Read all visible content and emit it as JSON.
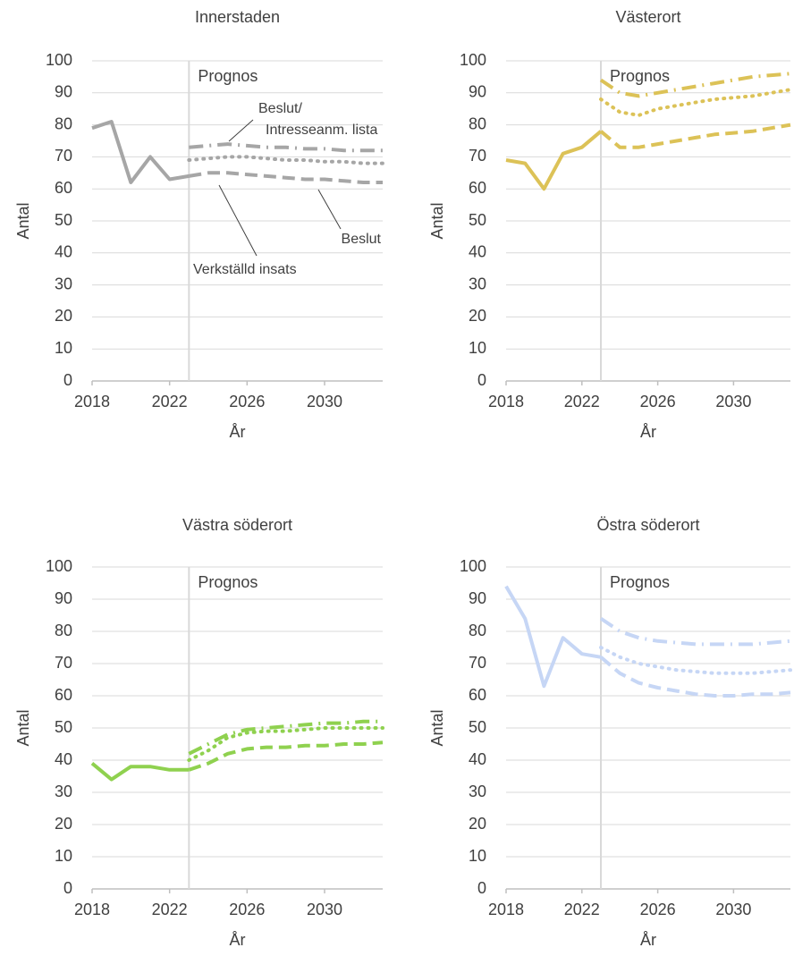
{
  "chart_data": [
    {
      "type": "line",
      "title": "Innerstaden",
      "ylabel": "Antal",
      "xlabel": "År",
      "x": [
        2018,
        2019,
        2020,
        2021,
        2022,
        2023,
        2024,
        2025,
        2026,
        2027,
        2028,
        2029,
        2030,
        2031,
        2032,
        2033
      ],
      "xlim": [
        2018,
        2033
      ],
      "xticks": [
        2018,
        2022,
        2026,
        2030
      ],
      "ylim": [
        0,
        100
      ],
      "yticks": [
        0,
        10,
        20,
        30,
        40,
        50,
        60,
        70,
        80,
        90,
        100
      ],
      "grid": true,
      "vline": {
        "x": 2023,
        "label": "Prognos"
      },
      "annotations": [
        [
          "Beslut/",
          "Intresseanm. lista"
        ],
        [
          "Beslut"
        ],
        [
          "Verkställd insats"
        ]
      ],
      "series": [
        {
          "color": "#a6a6a6",
          "dash": "solid",
          "values": [
            79,
            81,
            62,
            70,
            63,
            64,
            null,
            null,
            null,
            null,
            null,
            null,
            null,
            null,
            null,
            null
          ]
        },
        {
          "color": "#a6a6a6",
          "dash": "dashed",
          "values": [
            null,
            null,
            null,
            null,
            null,
            64,
            65,
            65,
            64.5,
            64,
            63.5,
            63,
            63,
            62.5,
            62,
            62
          ]
        },
        {
          "color": "#a6a6a6",
          "dash": "dotted",
          "values": [
            null,
            null,
            null,
            null,
            null,
            69,
            69.5,
            70,
            70,
            69.5,
            69,
            69,
            68.5,
            68.5,
            68,
            68
          ]
        },
        {
          "color": "#a6a6a6",
          "dash": "dashdot",
          "values": [
            null,
            null,
            null,
            null,
            null,
            73,
            73.5,
            74,
            73.5,
            73,
            73,
            72.5,
            72.5,
            72,
            72,
            72
          ]
        }
      ]
    },
    {
      "type": "line",
      "title": "Västerort",
      "ylabel": "Antal",
      "xlabel": "År",
      "x": [
        2018,
        2019,
        2020,
        2021,
        2022,
        2023,
        2024,
        2025,
        2026,
        2027,
        2028,
        2029,
        2030,
        2031,
        2032,
        2033
      ],
      "xlim": [
        2018,
        2033
      ],
      "xticks": [
        2018,
        2022,
        2026,
        2030
      ],
      "ylim": [
        0,
        100
      ],
      "yticks": [
        0,
        10,
        20,
        30,
        40,
        50,
        60,
        70,
        80,
        90,
        100
      ],
      "grid": true,
      "vline": {
        "x": 2023,
        "label": "Prognos"
      },
      "series": [
        {
          "color": "#dcc257",
          "dash": "solid",
          "values": [
            69,
            68,
            60,
            71,
            73,
            78,
            null,
            null,
            null,
            null,
            null,
            null,
            null,
            null,
            null,
            null
          ]
        },
        {
          "color": "#dcc257",
          "dash": "dashed",
          "values": [
            null,
            null,
            null,
            null,
            null,
            78,
            73,
            73,
            74,
            75,
            76,
            77,
            77.5,
            78,
            79,
            80
          ]
        },
        {
          "color": "#dcc257",
          "dash": "dotted",
          "values": [
            null,
            null,
            null,
            null,
            null,
            88,
            84,
            83,
            85,
            86,
            87,
            88,
            88.5,
            89,
            90,
            91
          ]
        },
        {
          "color": "#dcc257",
          "dash": "dashdot",
          "values": [
            null,
            null,
            null,
            null,
            null,
            94,
            90,
            89,
            90,
            91,
            92,
            93,
            94,
            95,
            95.5,
            96
          ]
        }
      ]
    },
    {
      "type": "line",
      "title": "Västra söderort",
      "ylabel": "Antal",
      "xlabel": "År",
      "x": [
        2018,
        2019,
        2020,
        2021,
        2022,
        2023,
        2024,
        2025,
        2026,
        2027,
        2028,
        2029,
        2030,
        2031,
        2032,
        2033
      ],
      "xlim": [
        2018,
        2033
      ],
      "xticks": [
        2018,
        2022,
        2026,
        2030
      ],
      "ylim": [
        0,
        100
      ],
      "yticks": [
        0,
        10,
        20,
        30,
        40,
        50,
        60,
        70,
        80,
        90,
        100
      ],
      "grid": true,
      "vline": {
        "x": 2023,
        "label": "Prognos"
      },
      "series": [
        {
          "color": "#8fd14f",
          "dash": "solid",
          "values": [
            39,
            34,
            38,
            38,
            37,
            37,
            null,
            null,
            null,
            null,
            null,
            null,
            null,
            null,
            null,
            null
          ]
        },
        {
          "color": "#8fd14f",
          "dash": "dashed",
          "values": [
            null,
            null,
            null,
            null,
            null,
            37,
            39,
            42,
            43.5,
            44,
            44,
            44.5,
            44.5,
            45,
            45,
            45.5
          ]
        },
        {
          "color": "#8fd14f",
          "dash": "dotted",
          "values": [
            null,
            null,
            null,
            null,
            null,
            40,
            43,
            47,
            48.5,
            49,
            49,
            49.5,
            50,
            50,
            50,
            50
          ]
        },
        {
          "color": "#8fd14f",
          "dash": "dashdot",
          "values": [
            null,
            null,
            null,
            null,
            null,
            42,
            45,
            48,
            49.5,
            50,
            50.5,
            51,
            51.5,
            51.5,
            52,
            52
          ]
        }
      ]
    },
    {
      "type": "line",
      "title": "Östra söderort",
      "ylabel": "Antal",
      "xlabel": "År",
      "x": [
        2018,
        2019,
        2020,
        2021,
        2022,
        2023,
        2024,
        2025,
        2026,
        2027,
        2028,
        2029,
        2030,
        2031,
        2032,
        2033
      ],
      "xlim": [
        2018,
        2033
      ],
      "xticks": [
        2018,
        2022,
        2026,
        2030
      ],
      "ylim": [
        0,
        100
      ],
      "yticks": [
        0,
        10,
        20,
        30,
        40,
        50,
        60,
        70,
        80,
        90,
        100
      ],
      "grid": true,
      "vline": {
        "x": 2023,
        "label": "Prognos"
      },
      "series": [
        {
          "color": "#c6d6f5",
          "dash": "solid",
          "values": [
            94,
            84,
            63,
            78,
            73,
            72,
            null,
            null,
            null,
            null,
            null,
            null,
            null,
            null,
            null,
            null
          ]
        },
        {
          "color": "#c6d6f5",
          "dash": "dashed",
          "values": [
            null,
            null,
            null,
            null,
            null,
            72,
            67,
            64,
            62.5,
            61.5,
            60.5,
            60,
            60,
            60.5,
            60.5,
            61
          ]
        },
        {
          "color": "#c6d6f5",
          "dash": "dotted",
          "values": [
            null,
            null,
            null,
            null,
            null,
            75,
            72,
            70,
            69,
            68,
            67.5,
            67,
            67,
            67,
            67.5,
            68
          ]
        },
        {
          "color": "#c6d6f5",
          "dash": "dashdot",
          "values": [
            null,
            null,
            null,
            null,
            null,
            84,
            80,
            78,
            77,
            76.5,
            76,
            76,
            76,
            76,
            76.5,
            77
          ]
        }
      ]
    }
  ]
}
